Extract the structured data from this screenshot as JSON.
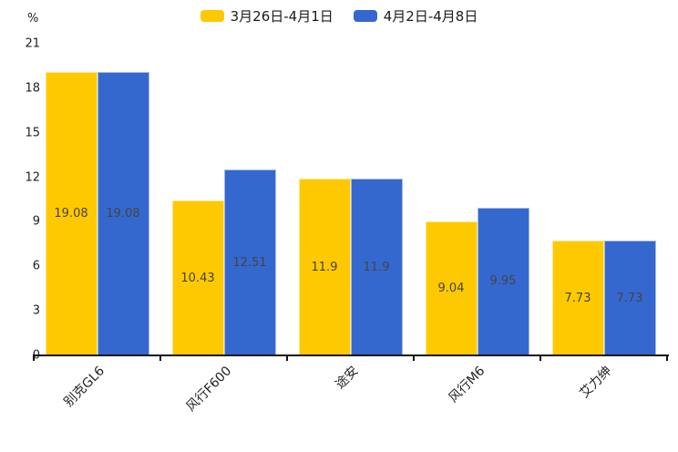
{
  "chart_data": {
    "type": "bar",
    "title": "",
    "unit_label": "%",
    "categories": [
      "别克GL6",
      "风行F600",
      "途安",
      "风行M6",
      "艾力绅"
    ],
    "series": [
      {
        "name": "3月26日-4月1日",
        "color": "#FEC900",
        "values": [
          19.08,
          10.43,
          11.9,
          9.04,
          7.73
        ]
      },
      {
        "name": "4月2日-4月8日",
        "color": "#3568CE",
        "values": [
          19.08,
          12.51,
          11.9,
          9.95,
          7.73
        ]
      }
    ],
    "yticks": [
      0,
      3,
      6,
      9,
      12,
      15,
      18,
      21
    ],
    "ylim": [
      0,
      21
    ],
    "grid": false,
    "legend_position": "top",
    "value_labels": "inside-center"
  },
  "colors": {
    "background": "#ffffff",
    "axis": "#111111",
    "tick_label": "#222222",
    "value_label": "#444444"
  }
}
